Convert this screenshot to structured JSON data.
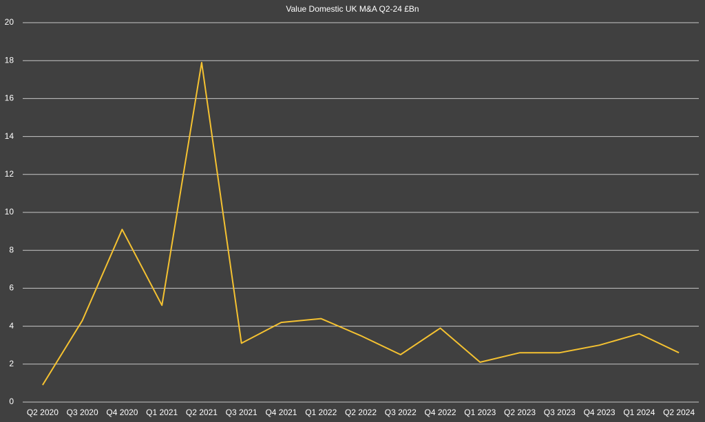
{
  "chart_data": {
    "type": "line",
    "title": "Value Domestic UK M&A Q2-24 £Bn",
    "categories": [
      "Q2 2020",
      "Q3 2020",
      "Q4 2020",
      "Q1 2021",
      "Q2 2021",
      "Q3 2021",
      "Q4 2021",
      "Q1 2022",
      "Q2 2022",
      "Q3 2022",
      "Q4 2022",
      "Q1 2023",
      "Q2 2023",
      "Q3 2023",
      "Q4 2023",
      "Q1 2024",
      "Q2 2024"
    ],
    "values": [
      0.9,
      4.3,
      9.1,
      5.1,
      17.9,
      3.1,
      4.2,
      4.4,
      3.5,
      2.5,
      3.9,
      2.1,
      2.6,
      2.6,
      3.0,
      3.6,
      2.6
    ],
    "color": "#f5c231",
    "ylim": [
      0,
      20
    ],
    "yticks": [
      0,
      2,
      4,
      6,
      8,
      10,
      12,
      14,
      16,
      18,
      20
    ],
    "grid": true
  }
}
